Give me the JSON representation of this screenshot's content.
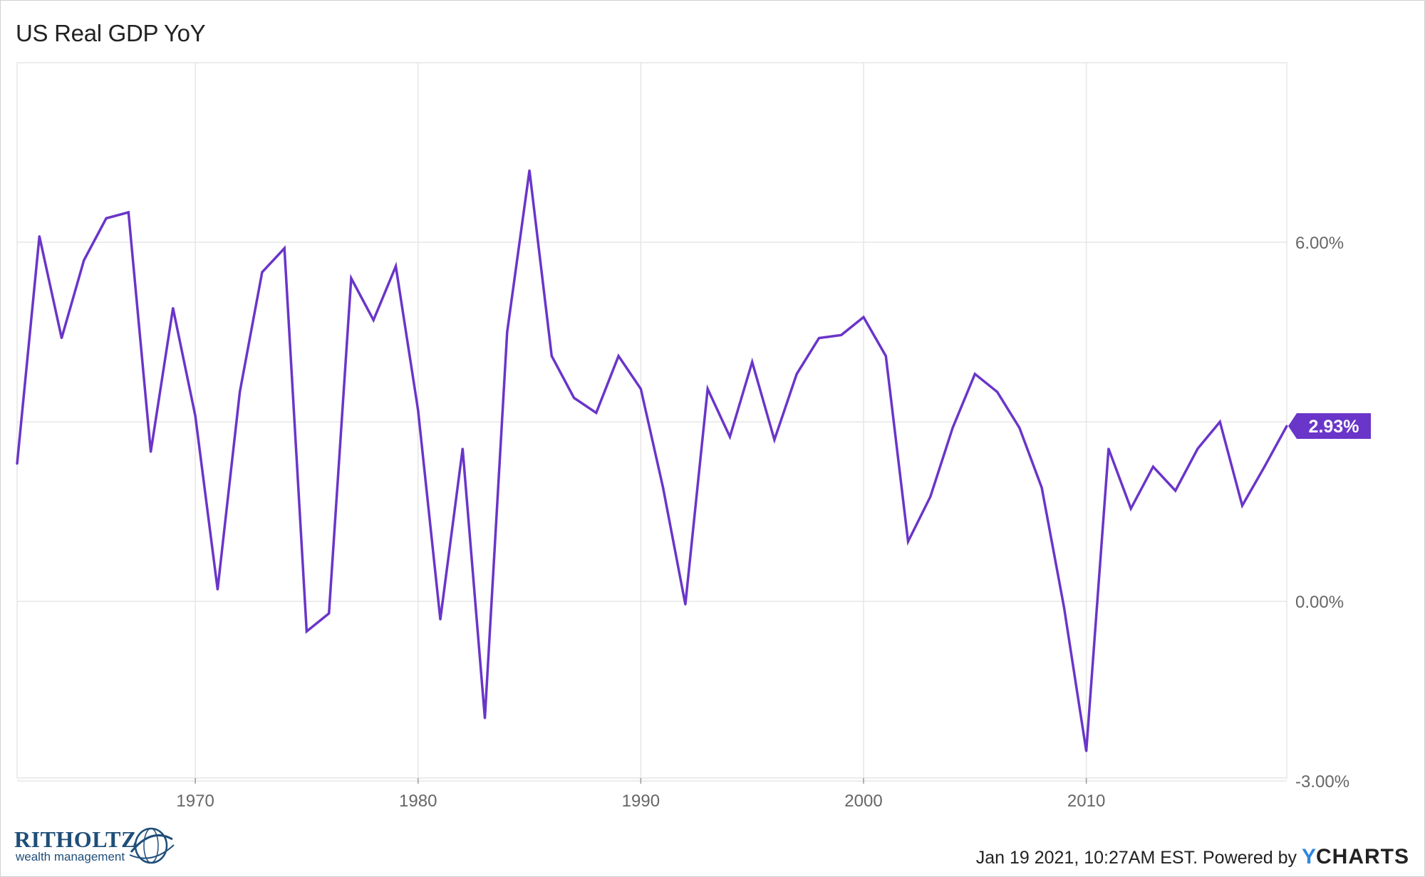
{
  "header": {
    "title": "US Real GDP YoY"
  },
  "footer": {
    "timestamp": "Jan 19 2021, 10:27AM EST.",
    "powered_by": "Powered by",
    "brand_y": "Y",
    "brand_rest": "CHARTS"
  },
  "logo": {
    "name": "RITHOLTZ",
    "tagline": "wealth management"
  },
  "colors": {
    "line": "#6a35c9",
    "grid": "#e6e6e6",
    "label_bg": "#6a35c9"
  },
  "chart_data": {
    "type": "line",
    "title": "US Real GDP YoY",
    "x_ticks": [
      "1970",
      "1980",
      "1990",
      "2000",
      "2010"
    ],
    "y_ticks": [
      "6.00%",
      "3.00%",
      "0.00%",
      "-3.00%"
    ],
    "y_tick_values": [
      6,
      3,
      0,
      -3
    ],
    "xlim": [
      1962,
      2019
    ],
    "ylim": [
      -2.95,
      9.0
    ],
    "last_value_label": "2.93%",
    "series": [
      {
        "x": [
          1962,
          1963,
          1964,
          1965,
          1966,
          1967,
          1968,
          1969,
          1970,
          1971,
          1972,
          1973,
          1974,
          1975,
          1976,
          1977,
          1978,
          1979,
          1980,
          1981,
          1982,
          1983,
          1984,
          1985,
          1986,
          1987,
          1988,
          1989,
          1990,
          1991,
          1992,
          1993,
          1994,
          1995,
          1996,
          1997,
          1998,
          1999,
          2000,
          2001,
          2002,
          2003,
          2004,
          2005,
          2006,
          2007,
          2008,
          2009,
          2010,
          2011,
          2012,
          2013,
          2014,
          2015,
          2016,
          2017,
          2018,
          2019
        ],
        "y": [
          2.3,
          6.1,
          4.4,
          5.7,
          6.4,
          6.5,
          2.5,
          4.9,
          3.1,
          0.2,
          3.5,
          5.5,
          5.9,
          -0.5,
          -0.2,
          5.4,
          4.7,
          5.6,
          3.2,
          -0.3,
          2.55,
          -1.95,
          4.5,
          7.2,
          4.1,
          3.4,
          3.15,
          4.1,
          3.55,
          1.9,
          -0.05,
          3.55,
          2.75,
          4.0,
          2.7,
          3.8,
          4.4,
          4.45,
          4.75,
          4.1,
          1.0,
          1.75,
          2.9,
          3.8,
          3.5,
          2.9,
          1.9,
          -0.1,
          -2.5,
          2.55,
          1.55,
          2.25,
          1.85,
          2.55,
          3.0,
          1.6,
          2.25,
          2.93
        ]
      }
    ]
  }
}
